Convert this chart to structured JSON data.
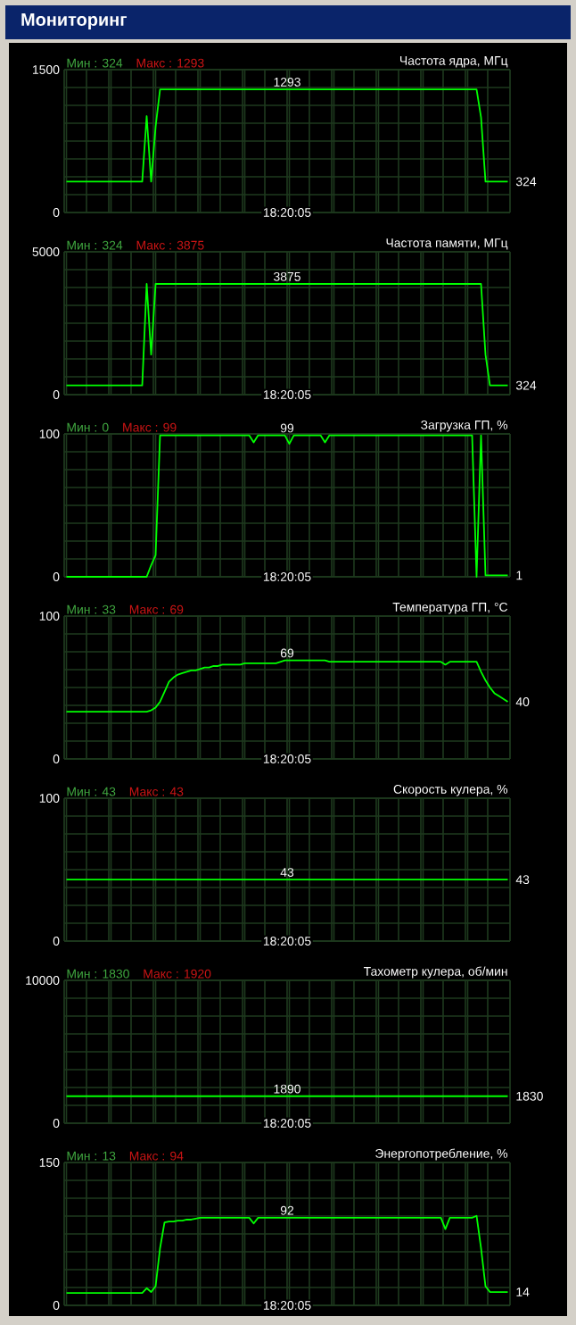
{
  "chart_data": [
    {
      "type": "other",
      "title": "Мониторинг"
    },
    {
      "type": "line",
      "title": "Частота ядра, МГц",
      "color": "#00ff00",
      "grid": true,
      "tick_labels": "y",
      "ylim": [
        0,
        1500
      ],
      "yticks": [
        0,
        1500
      ],
      "categories": [
        null,
        null,
        null,
        null,
        null,
        null,
        null,
        null,
        null,
        null,
        null,
        null,
        null,
        null,
        null,
        null,
        null,
        null,
        null,
        null,
        null,
        null,
        null,
        null,
        null,
        null,
        null,
        null,
        null,
        null,
        null,
        null,
        null,
        null,
        null,
        null,
        null,
        null,
        null,
        null,
        null,
        null,
        null,
        null,
        null,
        null,
        null,
        null,
        null,
        null,
        null,
        null,
        null,
        null,
        null,
        null,
        null,
        null,
        null,
        null,
        null,
        null,
        null,
        null,
        null,
        null,
        null,
        null,
        null,
        null,
        null,
        null,
        null,
        null,
        null,
        null,
        null,
        null,
        null,
        null,
        null,
        null,
        null,
        null,
        null,
        null,
        null,
        null,
        null,
        null,
        null,
        null,
        null,
        null,
        null,
        null,
        null,
        null,
        null,
        null
      ],
      "values": [
        324,
        324,
        324,
        324,
        324,
        324,
        324,
        324,
        324,
        324,
        324,
        324,
        324,
        324,
        324,
        324,
        324,
        324,
        1012,
        324,
        900,
        1293,
        1293,
        1293,
        1293,
        1293,
        1293,
        1293,
        1293,
        1293,
        1293,
        1293,
        1293,
        1293,
        1293,
        1293,
        1293,
        1293,
        1293,
        1293,
        1293,
        1293,
        1293,
        1293,
        1293,
        1293,
        1293,
        1293,
        1293,
        1293,
        1293,
        1293,
        1293,
        1293,
        1293,
        1293,
        1293,
        1293,
        1293,
        1293,
        1293,
        1293,
        1293,
        1293,
        1293,
        1293,
        1293,
        1293,
        1293,
        1293,
        1293,
        1293,
        1293,
        1293,
        1293,
        1293,
        1293,
        1293,
        1293,
        1293,
        1293,
        1293,
        1293,
        1293,
        1293,
        1293,
        1293,
        1293,
        1293,
        1293,
        1293,
        1293,
        1293,
        1000,
        324,
        324,
        324,
        324,
        324,
        324
      ],
      "annotations": [
        "Мин : 324",
        "Макс : 1293",
        {
          "text": "1293",
          "y": 1293
        },
        "324",
        "18:20:05"
      ]
    },
    {
      "type": "line",
      "title": "Частота памяти, МГц",
      "color": "#00ff00",
      "grid": true,
      "tick_labels": "y",
      "ylim": [
        0,
        5000
      ],
      "yticks": [
        0,
        5000
      ],
      "categories": [
        null,
        null,
        null,
        null,
        null,
        null,
        null,
        null,
        null,
        null,
        null,
        null,
        null,
        null,
        null,
        null,
        null,
        null,
        null,
        null,
        null,
        null,
        null,
        null,
        null,
        null,
        null,
        null,
        null,
        null,
        null,
        null,
        null,
        null,
        null,
        null,
        null,
        null,
        null,
        null,
        null,
        null,
        null,
        null,
        null,
        null,
        null,
        null,
        null,
        null,
        null,
        null,
        null,
        null,
        null,
        null,
        null,
        null,
        null,
        null,
        null,
        null,
        null,
        null,
        null,
        null,
        null,
        null,
        null,
        null,
        null,
        null,
        null,
        null,
        null,
        null,
        null,
        null,
        null,
        null,
        null,
        null,
        null,
        null,
        null,
        null,
        null,
        null,
        null,
        null,
        null,
        null,
        null,
        null,
        null,
        null,
        null,
        null,
        null,
        null
      ],
      "values": [
        324,
        324,
        324,
        324,
        324,
        324,
        324,
        324,
        324,
        324,
        324,
        324,
        324,
        324,
        324,
        324,
        324,
        324,
        3875,
        1400,
        3875,
        3875,
        3875,
        3875,
        3875,
        3875,
        3875,
        3875,
        3875,
        3875,
        3875,
        3875,
        3875,
        3875,
        3875,
        3875,
        3875,
        3875,
        3875,
        3875,
        3875,
        3875,
        3875,
        3875,
        3875,
        3875,
        3875,
        3875,
        3875,
        3875,
        3875,
        3875,
        3875,
        3875,
        3875,
        3875,
        3875,
        3875,
        3875,
        3875,
        3875,
        3875,
        3875,
        3875,
        3875,
        3875,
        3875,
        3875,
        3875,
        3875,
        3875,
        3875,
        3875,
        3875,
        3875,
        3875,
        3875,
        3875,
        3875,
        3875,
        3875,
        3875,
        3875,
        3875,
        3875,
        3875,
        3875,
        3875,
        3875,
        3875,
        3875,
        3875,
        3875,
        3875,
        1400,
        324,
        324,
        324,
        324,
        324
      ],
      "annotations": [
        "Мин : 324",
        "Макс : 3875",
        {
          "text": "3875",
          "y": 3875
        },
        "324",
        "18:20:05"
      ]
    },
    {
      "type": "line",
      "title": "Загрузка ГП, %",
      "color": "#00ff00",
      "grid": true,
      "tick_labels": "y",
      "ylim": [
        0,
        100
      ],
      "yticks": [
        0,
        100
      ],
      "categories": [
        null,
        null,
        null,
        null,
        null,
        null,
        null,
        null,
        null,
        null,
        null,
        null,
        null,
        null,
        null,
        null,
        null,
        null,
        null,
        null,
        null,
        null,
        null,
        null,
        null,
        null,
        null,
        null,
        null,
        null,
        null,
        null,
        null,
        null,
        null,
        null,
        null,
        null,
        null,
        null,
        null,
        null,
        null,
        null,
        null,
        null,
        null,
        null,
        null,
        null,
        null,
        null,
        null,
        null,
        null,
        null,
        null,
        null,
        null,
        null,
        null,
        null,
        null,
        null,
        null,
        null,
        null,
        null,
        null,
        null,
        null,
        null,
        null,
        null,
        null,
        null,
        null,
        null,
        null,
        null,
        null,
        null,
        null,
        null,
        null,
        null,
        null,
        null,
        null,
        null,
        null,
        null,
        null,
        null,
        null,
        null,
        null,
        null,
        null,
        null
      ],
      "values": [
        0,
        0,
        0,
        0,
        0,
        0,
        0,
        0,
        0,
        0,
        0,
        0,
        0,
        0,
        0,
        0,
        0,
        0,
        0,
        8,
        15,
        99,
        99,
        99,
        99,
        99,
        99,
        99,
        99,
        99,
        99,
        99,
        99,
        99,
        99,
        99,
        99,
        99,
        99,
        99,
        99,
        99,
        94,
        99,
        99,
        99,
        99,
        99,
        99,
        99,
        93,
        99,
        99,
        99,
        99,
        99,
        99,
        99,
        94,
        99,
        99,
        99,
        99,
        99,
        99,
        99,
        99,
        99,
        99,
        99,
        99,
        99,
        99,
        99,
        99,
        99,
        99,
        99,
        99,
        99,
        99,
        99,
        99,
        99,
        99,
        99,
        99,
        99,
        99,
        99,
        99,
        99,
        0,
        99,
        1,
        1,
        1,
        1,
        1,
        1
      ],
      "annotations": [
        "Мин : 0",
        "Макс : 99",
        {
          "text": "99",
          "y": 99
        },
        "1",
        "18:20:05"
      ]
    },
    {
      "type": "line",
      "title": "Температура ГП, °C",
      "color": "#00ff00",
      "grid": true,
      "tick_labels": "y",
      "ylim": [
        0,
        100
      ],
      "yticks": [
        0,
        100
      ],
      "categories": [
        null,
        null,
        null,
        null,
        null,
        null,
        null,
        null,
        null,
        null,
        null,
        null,
        null,
        null,
        null,
        null,
        null,
        null,
        null,
        null,
        null,
        null,
        null,
        null,
        null,
        null,
        null,
        null,
        null,
        null,
        null,
        null,
        null,
        null,
        null,
        null,
        null,
        null,
        null,
        null,
        null,
        null,
        null,
        null,
        null,
        null,
        null,
        null,
        null,
        null,
        null,
        null,
        null,
        null,
        null,
        null,
        null,
        null,
        null,
        null,
        null,
        null,
        null,
        null,
        null,
        null,
        null,
        null,
        null,
        null,
        null,
        null,
        null,
        null,
        null,
        null,
        null,
        null,
        null,
        null,
        null,
        null,
        null,
        null,
        null,
        null,
        null,
        null,
        null,
        null,
        null,
        null,
        null,
        null,
        null,
        null,
        null,
        null,
        null,
        null
      ],
      "values": [
        33,
        33,
        33,
        33,
        33,
        33,
        33,
        33,
        33,
        33,
        33,
        33,
        33,
        33,
        33,
        33,
        33,
        33,
        33,
        34,
        36,
        40,
        47,
        54,
        57,
        59,
        60,
        61,
        62,
        62,
        63,
        64,
        64,
        65,
        65,
        66,
        66,
        66,
        66,
        66,
        67,
        67,
        67,
        67,
        67,
        67,
        67,
        67,
        68,
        69,
        69,
        69,
        69,
        69,
        69,
        69,
        69,
        69,
        69,
        68,
        68,
        68,
        68,
        68,
        68,
        68,
        68,
        68,
        68,
        68,
        68,
        68,
        68,
        68,
        68,
        68,
        68,
        68,
        68,
        68,
        68,
        68,
        68,
        68,
        68,
        66,
        68,
        68,
        68,
        68,
        68,
        68,
        68,
        61,
        55,
        50,
        46,
        44,
        42,
        40
      ],
      "annotations": [
        "Мин : 33",
        "Макс : 69",
        {
          "text": "69",
          "y": 69
        },
        "40",
        "18:20:05"
      ]
    },
    {
      "type": "line",
      "title": "Скорость кулера, %",
      "color": "#00ff00",
      "grid": true,
      "tick_labels": "y",
      "ylim": [
        0,
        100
      ],
      "yticks": [
        0,
        100
      ],
      "categories": [
        null,
        null,
        null,
        null,
        null,
        null,
        null,
        null,
        null,
        null,
        null,
        null,
        null,
        null,
        null,
        null,
        null,
        null,
        null,
        null,
        null,
        null,
        null,
        null,
        null,
        null,
        null,
        null,
        null,
        null,
        null,
        null,
        null,
        null,
        null,
        null,
        null,
        null,
        null,
        null,
        null,
        null,
        null,
        null,
        null,
        null,
        null,
        null,
        null,
        null,
        null,
        null,
        null,
        null,
        null,
        null,
        null,
        null,
        null,
        null,
        null,
        null,
        null,
        null,
        null,
        null,
        null,
        null,
        null,
        null,
        null,
        null,
        null,
        null,
        null,
        null,
        null,
        null,
        null,
        null,
        null,
        null,
        null,
        null,
        null,
        null,
        null,
        null,
        null,
        null,
        null,
        null,
        null,
        null,
        null,
        null,
        null,
        null,
        null,
        null
      ],
      "values": [
        43,
        43,
        43,
        43,
        43,
        43,
        43,
        43,
        43,
        43,
        43,
        43,
        43,
        43,
        43,
        43,
        43,
        43,
        43,
        43,
        43,
        43,
        43,
        43,
        43,
        43,
        43,
        43,
        43,
        43,
        43,
        43,
        43,
        43,
        43,
        43,
        43,
        43,
        43,
        43,
        43,
        43,
        43,
        43,
        43,
        43,
        43,
        43,
        43,
        43,
        43,
        43,
        43,
        43,
        43,
        43,
        43,
        43,
        43,
        43,
        43,
        43,
        43,
        43,
        43,
        43,
        43,
        43,
        43,
        43,
        43,
        43,
        43,
        43,
        43,
        43,
        43,
        43,
        43,
        43,
        43,
        43,
        43,
        43,
        43,
        43,
        43,
        43,
        43,
        43,
        43,
        43,
        43,
        43,
        43,
        43,
        43,
        43,
        43,
        43
      ],
      "annotations": [
        "Мин : 43",
        "Макс : 43",
        {
          "text": "43",
          "y": 43
        },
        "43",
        "18:20:05"
      ]
    },
    {
      "type": "line",
      "title": "Тахометр кулера, об/мин",
      "color": "#00ff00",
      "grid": true,
      "tick_labels": "y",
      "ylim": [
        0,
        10000
      ],
      "yticks": [
        0,
        10000
      ],
      "categories": [
        null,
        null,
        null,
        null,
        null,
        null,
        null,
        null,
        null,
        null,
        null,
        null,
        null,
        null,
        null,
        null,
        null,
        null,
        null,
        null,
        null,
        null,
        null,
        null,
        null,
        null,
        null,
        null,
        null,
        null,
        null,
        null,
        null,
        null,
        null,
        null,
        null,
        null,
        null,
        null,
        null,
        null,
        null,
        null,
        null,
        null,
        null,
        null,
        null,
        null,
        null,
        null,
        null,
        null,
        null,
        null,
        null,
        null,
        null,
        null,
        null,
        null,
        null,
        null,
        null,
        null,
        null,
        null,
        null,
        null,
        null,
        null,
        null,
        null,
        null,
        null,
        null,
        null,
        null,
        null,
        null,
        null,
        null,
        null,
        null,
        null,
        null,
        null,
        null,
        null,
        null,
        null,
        null,
        null,
        null,
        null,
        null,
        null,
        null,
        null
      ],
      "values": [
        1890,
        1890,
        1890,
        1890,
        1890,
        1890,
        1890,
        1890,
        1890,
        1890,
        1890,
        1890,
        1890,
        1890,
        1890,
        1890,
        1890,
        1890,
        1890,
        1890,
        1890,
        1890,
        1890,
        1890,
        1890,
        1890,
        1890,
        1890,
        1890,
        1890,
        1890,
        1890,
        1890,
        1890,
        1890,
        1890,
        1890,
        1890,
        1890,
        1890,
        1890,
        1890,
        1890,
        1890,
        1890,
        1890,
        1890,
        1890,
        1890,
        1890,
        1890,
        1890,
        1890,
        1890,
        1890,
        1890,
        1890,
        1890,
        1890,
        1890,
        1890,
        1890,
        1890,
        1890,
        1890,
        1890,
        1890,
        1890,
        1890,
        1890,
        1890,
        1890,
        1890,
        1890,
        1890,
        1890,
        1890,
        1890,
        1890,
        1890,
        1890,
        1890,
        1890,
        1890,
        1890,
        1890,
        1890,
        1890,
        1890,
        1890,
        1890,
        1890,
        1890,
        1890,
        1890,
        1890,
        1890,
        1890,
        1890,
        1890
      ],
      "annotations": [
        "Мин : 1830",
        "Макс : 1920",
        {
          "text": "1890",
          "y": 1890
        },
        "1830",
        "18:20:05"
      ]
    },
    {
      "type": "line",
      "title": "Энергопотребление, %",
      "color": "#00ff00",
      "grid": true,
      "tick_labels": "y",
      "ylim": [
        0,
        150
      ],
      "yticks": [
        0,
        150
      ],
      "categories": [
        null,
        null,
        null,
        null,
        null,
        null,
        null,
        null,
        null,
        null,
        null,
        null,
        null,
        null,
        null,
        null,
        null,
        null,
        null,
        null,
        null,
        null,
        null,
        null,
        null,
        null,
        null,
        null,
        null,
        null,
        null,
        null,
        null,
        null,
        null,
        null,
        null,
        null,
        null,
        null,
        null,
        null,
        null,
        null,
        null,
        null,
        null,
        null,
        null,
        null,
        null,
        null,
        null,
        null,
        null,
        null,
        null,
        null,
        null,
        null,
        null,
        null,
        null,
        null,
        null,
        null,
        null,
        null,
        null,
        null,
        null,
        null,
        null,
        null,
        null,
        null,
        null,
        null,
        null,
        null,
        null,
        null,
        null,
        null,
        null,
        null,
        null,
        null,
        null,
        null,
        null,
        null,
        null,
        null,
        null,
        null,
        null,
        null,
        null,
        null
      ],
      "values": [
        13,
        13,
        13,
        13,
        13,
        13,
        13,
        13,
        13,
        13,
        13,
        13,
        13,
        13,
        13,
        13,
        13,
        13,
        18,
        14,
        20,
        60,
        87,
        88,
        88,
        89,
        89,
        90,
        90,
        91,
        92,
        92,
        92,
        92,
        92,
        92,
        92,
        92,
        92,
        92,
        92,
        92,
        86,
        92,
        92,
        92,
        92,
        92,
        92,
        92,
        92,
        92,
        92,
        92,
        92,
        92,
        92,
        92,
        92,
        92,
        92,
        92,
        92,
        92,
        92,
        92,
        92,
        92,
        92,
        92,
        92,
        92,
        92,
        92,
        92,
        92,
        92,
        92,
        92,
        92,
        92,
        92,
        92,
        92,
        92,
        80,
        92,
        92,
        92,
        92,
        92,
        92,
        94,
        60,
        20,
        14,
        14,
        14,
        14,
        14
      ],
      "annotations": [
        "Мин : 13",
        "Макс : 94",
        {
          "text": "92",
          "y": 92
        },
        "14",
        "18:20:05"
      ]
    }
  ]
}
